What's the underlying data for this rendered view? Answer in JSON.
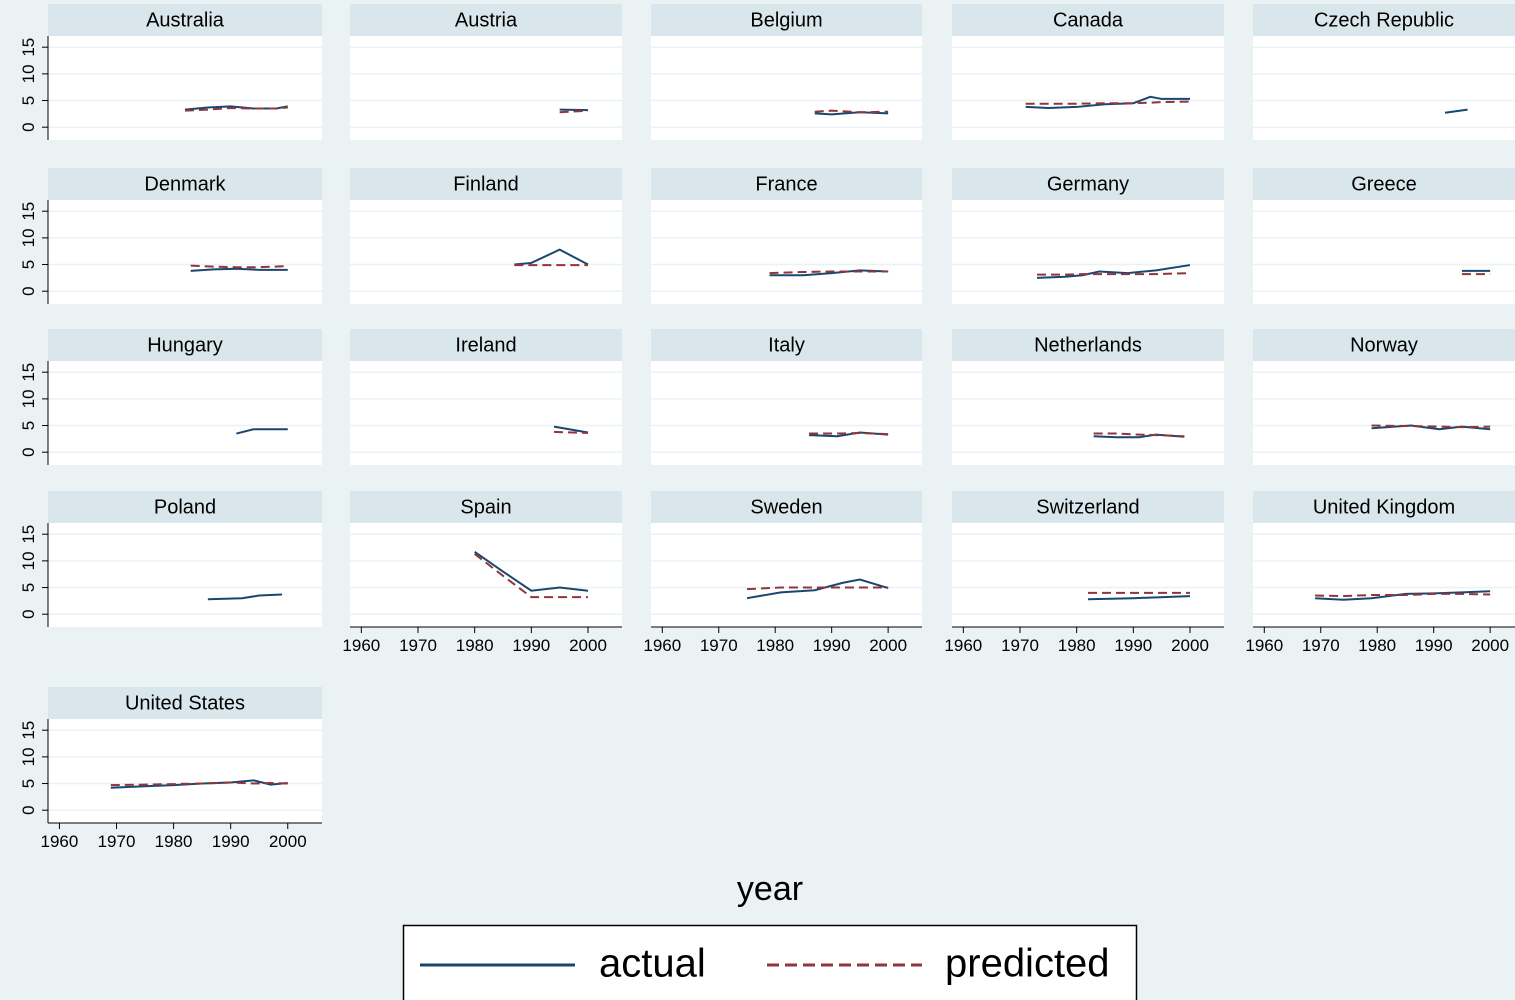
{
  "x_label": "year",
  "chart_data": [
    {
      "type": "line",
      "title": "Australia",
      "x": [
        1982,
        1986,
        1990,
        1994,
        1998,
        2000
      ],
      "series": [
        {
          "name": "actual",
          "color": "#1a476f",
          "style": "solid",
          "values": [
            3.3,
            3.7,
            3.9,
            3.5,
            3.5,
            3.9
          ]
        },
        {
          "name": "predicted",
          "color": "#90353b",
          "style": "dashed",
          "values": [
            3.1,
            3.3,
            3.6,
            3.5,
            3.5,
            3.7
          ]
        }
      ],
      "xlim": [
        1958,
        2006
      ],
      "ylim": [
        -2.4,
        17.1
      ],
      "yticks": [
        0,
        5,
        10,
        15
      ]
    },
    {
      "type": "line",
      "title": "Austria",
      "x": [
        1995,
        2000
      ],
      "series": [
        {
          "name": "actual",
          "color": "#1a476f",
          "style": "solid",
          "values": [
            3.3,
            3.2
          ]
        },
        {
          "name": "predicted",
          "color": "#90353b",
          "style": "dashed",
          "values": [
            2.8,
            3.1
          ]
        }
      ],
      "xlim": [
        1958,
        2006
      ],
      "ylim": [
        -2.4,
        17.1
      ],
      "yticks": [
        0,
        5,
        10,
        15
      ]
    },
    {
      "type": "line",
      "title": "Belgium",
      "x": [
        1987,
        1990,
        1995,
        2000
      ],
      "series": [
        {
          "name": "actual",
          "color": "#1a476f",
          "style": "solid",
          "values": [
            2.6,
            2.4,
            2.8,
            2.6
          ]
        },
        {
          "name": "predicted",
          "color": "#90353b",
          "style": "dashed",
          "values": [
            2.9,
            3.1,
            2.8,
            2.9
          ]
        }
      ],
      "xlim": [
        1958,
        2006
      ],
      "ylim": [
        -2.4,
        17.1
      ],
      "yticks": [
        0,
        5,
        10,
        15
      ]
    },
    {
      "type": "line",
      "title": "Canada",
      "x": [
        1971,
        1975,
        1980,
        1985,
        1990,
        1993,
        1995,
        2000
      ],
      "series": [
        {
          "name": "actual",
          "color": "#1a476f",
          "style": "solid",
          "values": [
            3.8,
            3.6,
            3.8,
            4.3,
            4.5,
            5.7,
            5.3,
            5.3
          ]
        },
        {
          "name": "predicted",
          "color": "#90353b",
          "style": "dashed",
          "values": [
            4.4,
            4.4,
            4.4,
            4.5,
            4.5,
            4.6,
            4.7,
            4.8
          ]
        }
      ],
      "xlim": [
        1958,
        2006
      ],
      "ylim": [
        -2.4,
        17.1
      ],
      "yticks": [
        0,
        5,
        10,
        15
      ]
    },
    {
      "type": "line",
      "title": "Czech Republic",
      "x": [
        1992,
        1996
      ],
      "series": [
        {
          "name": "actual",
          "color": "#1a476f",
          "style": "solid",
          "values": [
            2.7,
            3.3
          ]
        }
      ],
      "xlim": [
        1958,
        2004.4
      ],
      "ylim": [
        -2.4,
        17.1
      ],
      "yticks": [
        0,
        5,
        10,
        15
      ]
    },
    {
      "type": "line",
      "title": "Denmark",
      "x": [
        1983,
        1987,
        1991,
        1995,
        2000
      ],
      "series": [
        {
          "name": "actual",
          "color": "#1a476f",
          "style": "solid",
          "values": [
            3.8,
            4.1,
            4.2,
            4.0,
            4.0
          ]
        },
        {
          "name": "predicted",
          "color": "#90353b",
          "style": "dashed",
          "values": [
            4.8,
            4.6,
            4.5,
            4.5,
            4.7
          ]
        }
      ],
      "xlim": [
        1958,
        2006
      ],
      "ylim": [
        -2.4,
        17.1
      ],
      "yticks": [
        0,
        5,
        10,
        15
      ]
    },
    {
      "type": "line",
      "title": "Finland",
      "x": [
        1987,
        1990,
        1995,
        2000
      ],
      "series": [
        {
          "name": "actual",
          "color": "#1a476f",
          "style": "solid",
          "values": [
            5.0,
            5.3,
            7.8,
            5.0
          ]
        },
        {
          "name": "predicted",
          "color": "#90353b",
          "style": "dashed",
          "values": [
            4.9,
            4.9,
            4.9,
            4.9
          ]
        }
      ],
      "xlim": [
        1958,
        2006
      ],
      "ylim": [
        -2.4,
        17.1
      ],
      "yticks": [
        0,
        5,
        10,
        15
      ]
    },
    {
      "type": "line",
      "title": "France",
      "x": [
        1979,
        1985,
        1990,
        1995,
        2000
      ],
      "series": [
        {
          "name": "actual",
          "color": "#1a476f",
          "style": "solid",
          "values": [
            3.0,
            3.0,
            3.4,
            3.9,
            3.7
          ]
        },
        {
          "name": "predicted",
          "color": "#90353b",
          "style": "dashed",
          "values": [
            3.4,
            3.6,
            3.7,
            3.7,
            3.7
          ]
        }
      ],
      "xlim": [
        1958,
        2006
      ],
      "ylim": [
        -2.4,
        17.1
      ],
      "yticks": [
        0,
        5,
        10,
        15
      ]
    },
    {
      "type": "line",
      "title": "Germany",
      "x": [
        1973,
        1978,
        1981,
        1984,
        1989,
        1994,
        2000
      ],
      "series": [
        {
          "name": "actual",
          "color": "#1a476f",
          "style": "solid",
          "values": [
            2.5,
            2.7,
            3.0,
            3.7,
            3.4,
            3.9,
            4.9
          ]
        },
        {
          "name": "predicted",
          "color": "#90353b",
          "style": "dashed",
          "values": [
            3.1,
            3.1,
            3.2,
            3.2,
            3.2,
            3.2,
            3.4
          ]
        }
      ],
      "xlim": [
        1958,
        2006
      ],
      "ylim": [
        -2.4,
        17.1
      ],
      "yticks": [
        0,
        5,
        10,
        15
      ]
    },
    {
      "type": "line",
      "title": "Greece",
      "x": [
        1995,
        2000
      ],
      "series": [
        {
          "name": "actual",
          "color": "#1a476f",
          "style": "solid",
          "values": [
            3.8,
            3.8
          ]
        },
        {
          "name": "predicted",
          "color": "#90353b",
          "style": "dashed",
          "values": [
            3.2,
            3.2
          ]
        }
      ],
      "xlim": [
        1958,
        2004.4
      ],
      "ylim": [
        -2.4,
        17.1
      ],
      "yticks": [
        0,
        5,
        10,
        15
      ]
    },
    {
      "type": "line",
      "title": "Hungary",
      "x": [
        1991,
        1994,
        2000
      ],
      "series": [
        {
          "name": "actual",
          "color": "#1a476f",
          "style": "solid",
          "values": [
            3.5,
            4.3,
            4.3
          ]
        }
      ],
      "xlim": [
        1958,
        2006
      ],
      "ylim": [
        -2.4,
        17.1
      ],
      "yticks": [
        0,
        5,
        10,
        15
      ]
    },
    {
      "type": "line",
      "title": "Ireland",
      "x": [
        1994,
        2000
      ],
      "series": [
        {
          "name": "actual",
          "color": "#1a476f",
          "style": "solid",
          "values": [
            4.8,
            3.7
          ]
        },
        {
          "name": "predicted",
          "color": "#90353b",
          "style": "dashed",
          "values": [
            3.8,
            3.6
          ]
        }
      ],
      "xlim": [
        1958,
        2006
      ],
      "ylim": [
        -2.4,
        17.1
      ],
      "yticks": [
        0,
        5,
        10,
        15
      ]
    },
    {
      "type": "line",
      "title": "Italy",
      "x": [
        1986,
        1991,
        1995,
        2000
      ],
      "series": [
        {
          "name": "actual",
          "color": "#1a476f",
          "style": "solid",
          "values": [
            3.2,
            3.0,
            3.7,
            3.3
          ]
        },
        {
          "name": "predicted",
          "color": "#90353b",
          "style": "dashed",
          "values": [
            3.5,
            3.5,
            3.6,
            3.4
          ]
        }
      ],
      "xlim": [
        1958,
        2006
      ],
      "ylim": [
        -2.4,
        17.1
      ],
      "yticks": [
        0,
        5,
        10,
        15
      ]
    },
    {
      "type": "line",
      "title": "Netherlands",
      "x": [
        1983,
        1987,
        1991,
        1994,
        1999
      ],
      "series": [
        {
          "name": "actual",
          "color": "#1a476f",
          "style": "solid",
          "values": [
            3.0,
            2.8,
            2.8,
            3.3,
            2.9
          ]
        },
        {
          "name": "predicted",
          "color": "#90353b",
          "style": "dashed",
          "values": [
            3.5,
            3.5,
            3.3,
            3.2,
            3.0
          ]
        }
      ],
      "xlim": [
        1958,
        2006
      ],
      "ylim": [
        -2.4,
        17.1
      ],
      "yticks": [
        0,
        5,
        10,
        15
      ]
    },
    {
      "type": "line",
      "title": "Norway",
      "x": [
        1979,
        1986,
        1991,
        1995,
        2000
      ],
      "series": [
        {
          "name": "actual",
          "color": "#1a476f",
          "style": "solid",
          "values": [
            4.5,
            5.0,
            4.3,
            4.8,
            4.3
          ]
        },
        {
          "name": "predicted",
          "color": "#90353b",
          "style": "dashed",
          "values": [
            5.0,
            4.9,
            4.8,
            4.7,
            4.8
          ]
        }
      ],
      "xlim": [
        1958,
        2004.4
      ],
      "ylim": [
        -2.4,
        17.1
      ],
      "yticks": [
        0,
        5,
        10,
        15
      ]
    },
    {
      "type": "line",
      "title": "Poland",
      "x": [
        1986,
        1992,
        1995,
        1999
      ],
      "series": [
        {
          "name": "actual",
          "color": "#1a476f",
          "style": "solid",
          "values": [
            2.8,
            3.0,
            3.5,
            3.7
          ]
        }
      ],
      "xlim": [
        1958,
        2006
      ],
      "ylim": [
        -2.4,
        17.1
      ],
      "yticks": [
        0,
        5,
        10,
        15
      ]
    },
    {
      "type": "line",
      "title": "Spain",
      "x": [
        1980,
        1985,
        1990,
        1995,
        2000
      ],
      "series": [
        {
          "name": "actual",
          "color": "#1a476f",
          "style": "solid",
          "values": [
            11.7,
            8.0,
            4.4,
            5.0,
            4.4
          ]
        },
        {
          "name": "predicted",
          "color": "#90353b",
          "style": "dashed",
          "values": [
            11.3,
            7.2,
            3.2,
            3.2,
            3.2
          ]
        }
      ],
      "xlim": [
        1958,
        2006
      ],
      "ylim": [
        -2.4,
        17.1
      ],
      "yticks": [
        0,
        5,
        10,
        15
      ],
      "xticks": [
        1960,
        1970,
        1980,
        1990,
        2000
      ]
    },
    {
      "type": "line",
      "title": "Sweden",
      "x": [
        1975,
        1981,
        1987,
        1992,
        1995,
        2000
      ],
      "series": [
        {
          "name": "actual",
          "color": "#1a476f",
          "style": "solid",
          "values": [
            3.0,
            4.1,
            4.5,
            5.9,
            6.5,
            4.9
          ]
        },
        {
          "name": "predicted",
          "color": "#90353b",
          "style": "dashed",
          "values": [
            4.7,
            5.0,
            5.0,
            5.0,
            5.0,
            5.0
          ]
        }
      ],
      "xlim": [
        1958,
        2006
      ],
      "ylim": [
        -2.4,
        17.1
      ],
      "yticks": [
        0,
        5,
        10,
        15
      ],
      "xticks": [
        1960,
        1970,
        1980,
        1990,
        2000
      ]
    },
    {
      "type": "line",
      "title": "Switzerland",
      "x": [
        1982,
        1990,
        2000
      ],
      "series": [
        {
          "name": "actual",
          "color": "#1a476f",
          "style": "solid",
          "values": [
            2.8,
            3.0,
            3.4
          ]
        },
        {
          "name": "predicted",
          "color": "#90353b",
          "style": "dashed",
          "values": [
            4.0,
            4.0,
            4.0
          ]
        }
      ],
      "xlim": [
        1958,
        2006
      ],
      "ylim": [
        -2.4,
        17.1
      ],
      "yticks": [
        0,
        5,
        10,
        15
      ],
      "xticks": [
        1960,
        1970,
        1980,
        1990,
        2000
      ]
    },
    {
      "type": "line",
      "title": "United Kingdom",
      "x": [
        1969,
        1974,
        1979,
        1985,
        1990,
        1995,
        2000
      ],
      "series": [
        {
          "name": "actual",
          "color": "#1a476f",
          "style": "solid",
          "values": [
            3.0,
            2.7,
            3.0,
            3.8,
            3.9,
            4.1,
            4.3
          ]
        },
        {
          "name": "predicted",
          "color": "#90353b",
          "style": "dashed",
          "values": [
            3.5,
            3.4,
            3.6,
            3.6,
            3.8,
            3.8,
            3.7
          ]
        }
      ],
      "xlim": [
        1958,
        2004.4
      ],
      "ylim": [
        -2.4,
        17.1
      ],
      "yticks": [
        0,
        5,
        10,
        15
      ],
      "xticks": [
        1960,
        1970,
        1980,
        1990,
        2000
      ]
    },
    {
      "type": "line",
      "title": "United States",
      "x": [
        1969,
        1975,
        1980,
        1985,
        1990,
        1994,
        1997,
        2000
      ],
      "series": [
        {
          "name": "actual",
          "color": "#1a476f",
          "style": "solid",
          "values": [
            4.2,
            4.5,
            4.7,
            5.0,
            5.2,
            5.6,
            4.8,
            5.1
          ]
        },
        {
          "name": "predicted",
          "color": "#90353b",
          "style": "dashed",
          "values": [
            4.7,
            4.8,
            4.9,
            5.0,
            5.2,
            5.0,
            5.1,
            5.0
          ]
        }
      ],
      "xlim": [
        1958,
        2006
      ],
      "ylim": [
        -2.4,
        17.1
      ],
      "yticks": [
        0,
        5,
        10,
        15
      ],
      "xticks": [
        1960,
        1970,
        1980,
        1990,
        2000
      ]
    }
  ]
}
